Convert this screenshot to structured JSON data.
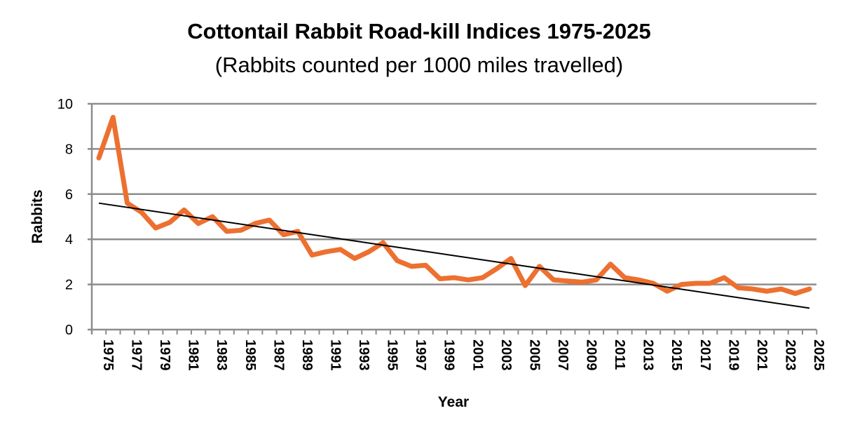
{
  "chart_data": {
    "type": "line",
    "title": "Cottontail Rabbit Road-kill Indices 1975-2025",
    "subtitle": "(Rabbits counted per 1000 miles travelled)",
    "xlabel": "Year",
    "ylabel": "Rabbits",
    "ylim": [
      0,
      10
    ],
    "yticks": [
      0,
      2,
      4,
      6,
      8,
      10
    ],
    "xlim": [
      1975,
      2025
    ],
    "xtick_labels": [
      "1975",
      "1977",
      "1979",
      "1981",
      "1983",
      "1985",
      "1987",
      "1989",
      "1991",
      "1993",
      "1995",
      "1997",
      "1999",
      "2001",
      "2003",
      "2005",
      "2007",
      "2009",
      "2011",
      "2013",
      "2015",
      "2017",
      "2019",
      "2021",
      "2023",
      "2025"
    ],
    "grid": "horizontal",
    "legend": "none",
    "x": [
      1975,
      1976,
      1977,
      1978,
      1979,
      1980,
      1981,
      1982,
      1983,
      1984,
      1985,
      1986,
      1987,
      1988,
      1989,
      1990,
      1991,
      1992,
      1993,
      1994,
      1995,
      1996,
      1997,
      1998,
      1999,
      2000,
      2001,
      2002,
      2003,
      2004,
      2005,
      2006,
      2007,
      2008,
      2009,
      2010,
      2011,
      2012,
      2013,
      2014,
      2015,
      2016,
      2017,
      2018,
      2019,
      2020,
      2021,
      2022,
      2023,
      2024,
      2025
    ],
    "series": [
      {
        "values": [
          7.6,
          9.4,
          5.6,
          5.2,
          4.5,
          4.75,
          5.3,
          4.7,
          5.0,
          4.35,
          4.4,
          4.7,
          4.85,
          4.2,
          4.35,
          3.3,
          3.45,
          3.55,
          3.15,
          3.45,
          3.85,
          3.05,
          2.8,
          2.85,
          2.25,
          2.3,
          2.2,
          2.3,
          2.7,
          3.15,
          1.95,
          2.8,
          2.2,
          2.15,
          2.1,
          2.2,
          2.9,
          2.3,
          2.2,
          2.05,
          1.7,
          2.0,
          2.05,
          2.05,
          2.3,
          1.85,
          1.8,
          1.7,
          1.8,
          1.6,
          1.8
        ],
        "color": "#ED7030"
      }
    ],
    "trendline": {
      "type": "linear",
      "start": [
        1975,
        5.6
      ],
      "end": [
        2025,
        0.95
      ],
      "color": "#000000"
    },
    "colors": {
      "grid": "#8c8c8c",
      "axis": "#8c8c8c"
    }
  }
}
